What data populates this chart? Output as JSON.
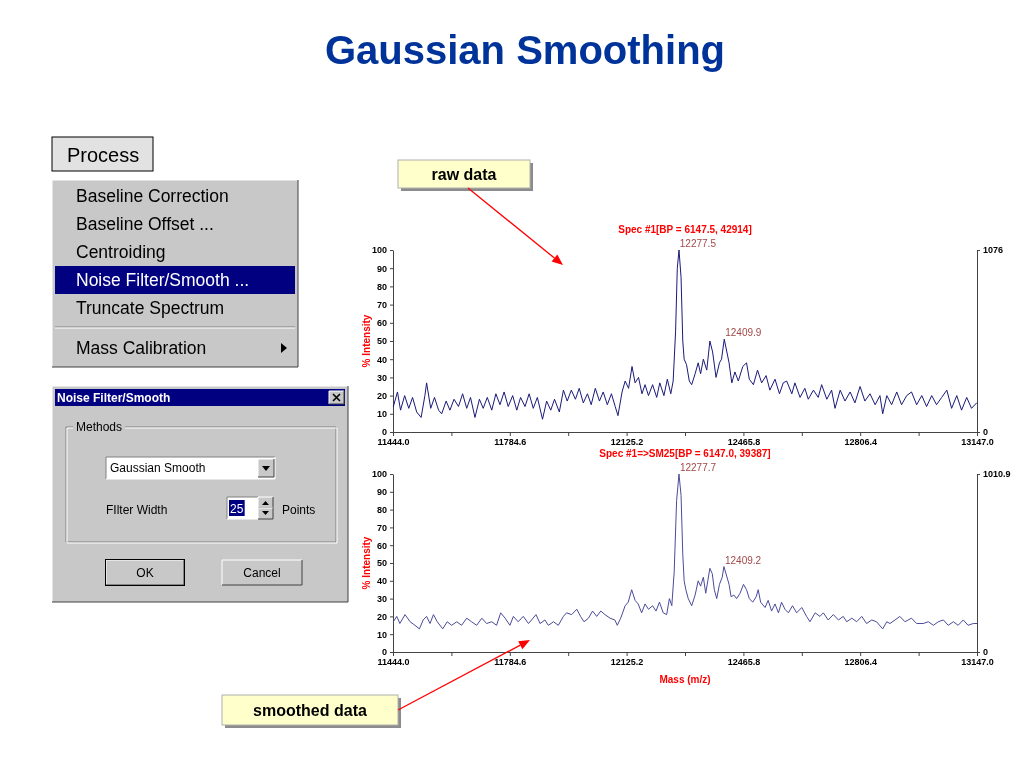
{
  "chart_data": [
    {
      "type": "other",
      "title": "Gaussian Smoothing",
      "annotations": [
        "Process",
        "Baseline Correction",
        "Baseline Offset ...",
        "Centroiding",
        "Noise Filter/Smooth ...",
        "Truncate Spectrum",
        "Mass Calibration"
      ]
    },
    {
      "type": "other",
      "title": "Noise Filter/Smooth",
      "annotations": [
        "Methods",
        "Gaussian Smooth",
        "FIlter Width",
        "25",
        "Points",
        "OK",
        "Cancel"
      ]
    },
    {
      "type": "line",
      "title": "Spec #1[BP = 6147.5, 42914]",
      "ylabel": "% Intensity",
      "color": "#1a1a7a",
      "x": [
        11445,
        11457,
        11466,
        11478,
        11490,
        11501,
        11513,
        11526,
        11537,
        11542,
        11554,
        11565,
        11577,
        11586,
        11599,
        11610,
        11622,
        11635,
        11647,
        11659,
        11670,
        11683,
        11696,
        11707,
        11719,
        11732,
        11744,
        11756,
        11768,
        11780,
        11793,
        11805,
        11816,
        11829,
        11841,
        11853,
        11865,
        11880,
        11892,
        11904,
        11915,
        11929,
        11941,
        11952,
        11964,
        11976,
        11987,
        11999,
        12011,
        12022,
        12034,
        12046,
        12057,
        12069,
        12081,
        12092,
        12100,
        12112,
        12121,
        12131,
        12141,
        12150,
        12160,
        12170,
        12179,
        12189,
        12201,
        12213,
        12222,
        12234,
        12244,
        12254,
        12261,
        12268,
        12273,
        12278,
        12284,
        12289,
        12293,
        12300,
        12308,
        12315,
        12325,
        12334,
        12341,
        12349,
        12359,
        12368,
        12376,
        12386,
        12396,
        12402,
        12410,
        12424,
        12432,
        12441,
        12451,
        12464,
        12475,
        12483,
        12495,
        12507,
        12519,
        12532,
        12543,
        12558,
        12571,
        12582,
        12592,
        12607,
        12616,
        12631,
        12645,
        12655,
        12670,
        12684,
        12694,
        12709,
        12723,
        12733,
        12748,
        12762,
        12777,
        12791,
        12806,
        12820,
        12835,
        12850,
        12864,
        12872,
        12884,
        12898,
        12913,
        12927,
        12942,
        12956,
        12971,
        12986,
        13000,
        13015,
        13029,
        13044,
        13059,
        13073,
        13088,
        13102,
        13117,
        13131,
        13146
      ],
      "values": [
        14,
        22,
        12,
        20,
        13,
        19,
        11,
        8,
        20,
        27,
        13,
        19,
        12,
        10,
        17,
        12,
        18,
        14,
        21,
        13,
        19,
        8,
        18,
        13,
        19,
        12,
        21,
        15,
        22,
        14,
        20,
        12,
        19,
        14,
        21,
        13,
        19,
        7,
        17,
        12,
        18,
        11,
        23,
        17,
        23,
        18,
        24,
        16,
        21,
        15,
        24,
        17,
        22,
        15,
        21,
        14,
        9,
        22,
        28,
        24,
        36,
        27,
        30,
        21,
        26,
        20,
        26,
        19,
        27,
        20,
        29,
        21,
        28,
        55,
        90,
        100,
        85,
        50,
        40,
        37,
        28,
        26,
        32,
        38,
        32,
        40,
        34,
        50,
        44,
        30,
        38,
        40,
        51,
        38,
        27,
        33,
        28,
        36,
        38,
        29,
        26,
        34,
        27,
        31,
        23,
        29,
        21,
        27,
        28,
        21,
        27,
        19,
        24,
        18,
        23,
        19,
        26,
        18,
        23,
        13,
        23,
        17,
        22,
        16,
        25,
        17,
        21,
        15,
        20,
        10,
        20,
        15,
        22,
        15,
        20,
        22,
        15,
        20,
        14,
        20,
        15,
        19,
        23,
        13,
        20,
        12,
        19,
        13,
        16
      ],
      "xlim": [
        11444,
        13147
      ],
      "xticks": [
        {
          "value": 11444,
          "label": "11444.0"
        },
        {
          "value": 11614.3,
          "label": null
        },
        11784.6,
        {
          "value": 11954.9,
          "label": null
        },
        12125.2,
        {
          "value": 12295.5,
          "label": null
        },
        12465.8,
        {
          "value": 12636.1,
          "label": null
        },
        12806.4,
        {
          "value": 12976.7,
          "label": null
        },
        {
          "value": 13147,
          "label": "13147.0"
        }
      ],
      "ylim": [
        0,
        100
      ],
      "yticks": [
        0,
        10,
        20,
        30,
        40,
        50,
        60,
        70,
        80,
        90,
        100
      ],
      "y2lim": [
        0,
        1076
      ],
      "y2ticks": [
        0,
        1076
      ],
      "annotations": [
        {
          "text": "12277.5",
          "x": 12277.5,
          "y": 100
        },
        {
          "text": "12409.9",
          "x": 12409.9,
          "y": 51
        },
        "raw data"
      ]
    },
    {
      "type": "line",
      "title": "Spec #1=>SM25[BP = 6147.0, 39387]",
      "xlabel": "Mass (m/z)",
      "ylabel": "% Intensity",
      "color": "#4b4b9b",
      "x": [
        11445,
        11455,
        11464,
        11479,
        11494,
        11508,
        11521,
        11532,
        11542,
        11552,
        11562,
        11573,
        11589,
        11602,
        11615,
        11630,
        11644,
        11659,
        11673,
        11688,
        11703,
        11717,
        11732,
        11746,
        11758,
        11771,
        11785,
        11795,
        11809,
        11824,
        11839,
        11848,
        11861,
        11873,
        11887,
        11897,
        11912,
        11926,
        11941,
        11950,
        11965,
        11980,
        11991,
        12001,
        12014,
        12026,
        12038,
        12050,
        12062,
        12077,
        12091,
        12098,
        12108,
        12121,
        12130,
        12140,
        12150,
        12159,
        12169,
        12179,
        12189,
        12201,
        12211,
        12221,
        12232,
        12242,
        12250,
        12257,
        12264,
        12271,
        12278,
        12284,
        12289,
        12293,
        12298,
        12305,
        12315,
        12325,
        12334,
        12341,
        12349,
        12356,
        12362,
        12368,
        12375,
        12381,
        12388,
        12396,
        12404,
        12409,
        12424,
        12430,
        12438,
        12446,
        12456,
        12466,
        12475,
        12483,
        12493,
        12503,
        12509,
        12516,
        12529,
        12538,
        12548,
        12558,
        12568,
        12577,
        12587,
        12597,
        12609,
        12621,
        12636,
        12650,
        12660,
        12675,
        12689,
        12699,
        12713,
        12728,
        12743,
        12757,
        12767,
        12782,
        12796,
        12811,
        12825,
        12840,
        12854,
        12872,
        12884,
        12893,
        12908,
        12922,
        12937,
        12956,
        12971,
        12990,
        13005,
        13020,
        13034,
        13049,
        13063,
        13078,
        13092,
        13107,
        13121,
        13136,
        13146
      ],
      "values": [
        17,
        20,
        16,
        21,
        17,
        15,
        13,
        18,
        20,
        16,
        21,
        17,
        13,
        17,
        15,
        17,
        15,
        19,
        17,
        15,
        19,
        16,
        17,
        15,
        22,
        19,
        15,
        20,
        17,
        20,
        16,
        18,
        21,
        16,
        18,
        15,
        17,
        15,
        20,
        22,
        21,
        24,
        20,
        17,
        19,
        23,
        20,
        23,
        21,
        19,
        18,
        15,
        19,
        26,
        28,
        35,
        29,
        27,
        22,
        27,
        24,
        26,
        23,
        28,
        22,
        21,
        30,
        26,
        45,
        85,
        100,
        88,
        55,
        40,
        35,
        30,
        26,
        32,
        40,
        37,
        42,
        33,
        40,
        47,
        44,
        35,
        30,
        38,
        42,
        48,
        38,
        31,
        32,
        30,
        33,
        38,
        35,
        30,
        28,
        31,
        35,
        28,
        25,
        29,
        23,
        27,
        22,
        28,
        24,
        22,
        26,
        22,
        25,
        20,
        17,
        22,
        20,
        22,
        18,
        21,
        18,
        20,
        17,
        19,
        17,
        20,
        16,
        18,
        17,
        13,
        17,
        16,
        18,
        20,
        17,
        19,
        16,
        16,
        17,
        15,
        17,
        18,
        15,
        17,
        15,
        18,
        15,
        16,
        16
      ],
      "xlim": [
        11444,
        13147
      ],
      "xticks": [
        {
          "value": 11444,
          "label": "11444.0"
        },
        {
          "value": 11614.3,
          "label": null
        },
        11784.6,
        {
          "value": 11954.9,
          "label": null
        },
        12125.2,
        {
          "value": 12295.5,
          "label": null
        },
        12465.8,
        {
          "value": 12636.1,
          "label": null
        },
        12806.4,
        {
          "value": 12976.7,
          "label": null
        },
        {
          "value": 13147,
          "label": "13147.0"
        }
      ],
      "ylim": [
        0,
        100
      ],
      "yticks": [
        0,
        10,
        20,
        30,
        40,
        50,
        60,
        70,
        80,
        90,
        100
      ],
      "y2lim": [
        0,
        1010.9
      ],
      "y2ticks": [
        0,
        1010.9
      ],
      "annotations": [
        {
          "text": "12277.7",
          "x": 12277.7,
          "y": 100
        },
        {
          "text": "12409.2",
          "x": 12409.2,
          "y": 48
        },
        "smoothed data"
      ]
    }
  ]
}
